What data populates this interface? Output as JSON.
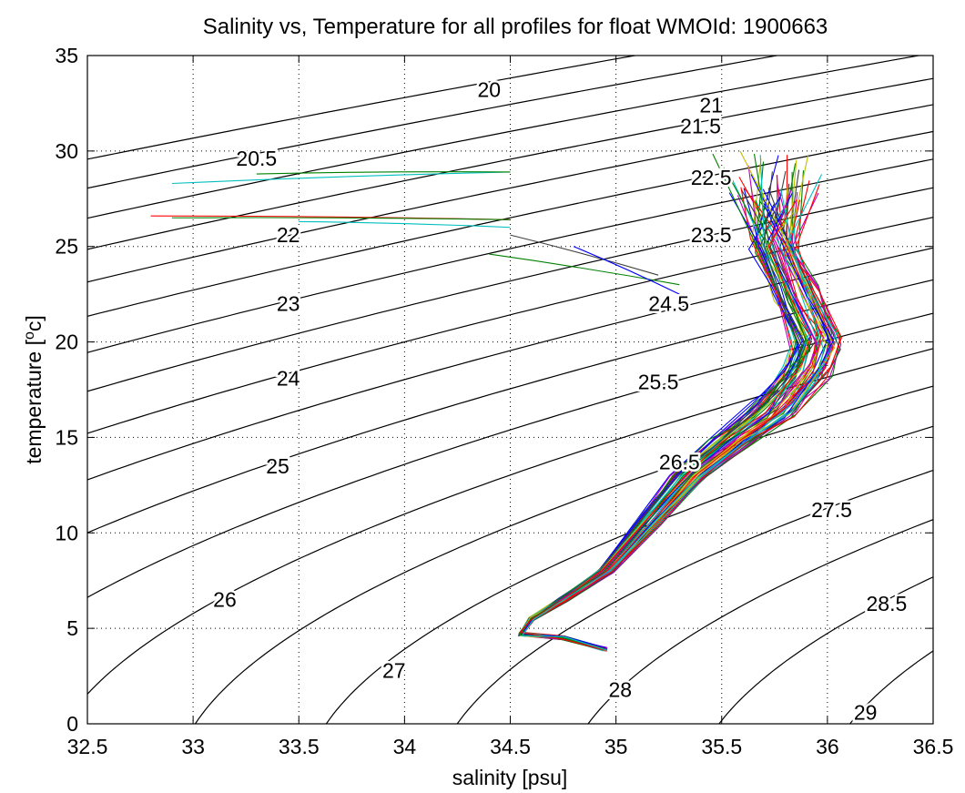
{
  "chart_data": {
    "type": "line",
    "title": "Salinity vs, Temperature for all profiles for float WMOId: 1900663",
    "xlabel": "salinity [psu]",
    "ylabel_main": "temperature [",
    "ylabel_sup": "o",
    "ylabel_end": "c]",
    "xlim": [
      32.5,
      36.5
    ],
    "ylim": [
      0,
      35
    ],
    "xticks": [
      32.5,
      33,
      33.5,
      34,
      34.5,
      35,
      35.5,
      36,
      36.5
    ],
    "xtick_labels": [
      "32.5",
      "33",
      "33.5",
      "34",
      "34.5",
      "35",
      "35.5",
      "36",
      "36.5"
    ],
    "yticks": [
      0,
      5,
      10,
      15,
      20,
      25,
      30,
      35
    ],
    "ytick_labels": [
      "0",
      "5",
      "10",
      "15",
      "20",
      "25",
      "30",
      "35"
    ],
    "grid": "dotted",
    "density_contours": {
      "levels": [
        20,
        20.5,
        21,
        21.5,
        22,
        22.5,
        23,
        23.5,
        24,
        24.5,
        25,
        25.5,
        26,
        26.5,
        27,
        27.5,
        28,
        28.5,
        29
      ],
      "labels": [
        {
          "text": "20",
          "x": 34.4,
          "y": 33.2
        },
        {
          "text": "21",
          "x": 35.45,
          "y": 32.4
        },
        {
          "text": "21.5",
          "x": 35.4,
          "y": 31.3
        },
        {
          "text": "20.5",
          "x": 33.3,
          "y": 29.6
        },
        {
          "text": "22.5",
          "x": 35.45,
          "y": 28.6
        },
        {
          "text": "22",
          "x": 33.45,
          "y": 25.6
        },
        {
          "text": "23.5",
          "x": 35.45,
          "y": 25.6
        },
        {
          "text": "23",
          "x": 33.45,
          "y": 22.0
        },
        {
          "text": "24.5",
          "x": 35.25,
          "y": 22.0
        },
        {
          "text": "24",
          "x": 33.45,
          "y": 18.1
        },
        {
          "text": "25.5",
          "x": 35.2,
          "y": 17.9
        },
        {
          "text": "25",
          "x": 33.4,
          "y": 13.5
        },
        {
          "text": "26.5",
          "x": 35.3,
          "y": 13.7
        },
        {
          "text": "27.5",
          "x": 36.02,
          "y": 11.2
        },
        {
          "text": "26",
          "x": 33.15,
          "y": 6.5
        },
        {
          "text": "28.5",
          "x": 36.28,
          "y": 6.3
        },
        {
          "text": "27",
          "x": 33.95,
          "y": 2.8
        },
        {
          "text": "28",
          "x": 35.02,
          "y": 1.8
        },
        {
          "text": "29",
          "x": 36.18,
          "y": 0.6
        }
      ]
    },
    "profiles": {
      "count": 60,
      "colors": [
        "#0000ff",
        "#008000",
        "#ff0000",
        "#00bfbf",
        "#bf00bf",
        "#bfbf00",
        "#404040"
      ],
      "mean_path": [
        [
          35.7,
          27.8
        ],
        [
          35.75,
          25.0
        ],
        [
          35.85,
          22.5
        ],
        [
          35.95,
          20.0
        ],
        [
          35.9,
          18.5
        ],
        [
          35.75,
          16.5
        ],
        [
          35.55,
          14.8
        ],
        [
          35.35,
          13.0
        ],
        [
          35.15,
          10.5
        ],
        [
          34.95,
          8.0
        ],
        [
          34.75,
          6.5
        ],
        [
          34.6,
          5.5
        ],
        [
          34.55,
          4.7
        ],
        [
          34.75,
          4.5
        ],
        [
          34.95,
          3.9
        ]
      ],
      "mixed_layer_tails": [
        {
          "from": [
            34.5,
            28.9
          ],
          "to": [
            32.9,
            28.3
          ],
          "color": "#00bfbf"
        },
        {
          "from": [
            34.5,
            28.9
          ],
          "to": [
            33.3,
            28.8
          ],
          "color": "#008000"
        },
        {
          "from": [
            34.5,
            26.4
          ],
          "to": [
            32.8,
            26.6
          ],
          "color": "#ff0000"
        },
        {
          "from": [
            34.5,
            26.4
          ],
          "to": [
            32.9,
            26.5
          ],
          "color": "#008000"
        },
        {
          "from": [
            34.5,
            26.0
          ],
          "to": [
            33.5,
            26.3
          ],
          "color": "#00bfbf"
        },
        {
          "from": [
            35.2,
            23.5
          ],
          "to": [
            34.5,
            25.6
          ],
          "color": "#404040"
        },
        {
          "from": [
            35.3,
            23.0
          ],
          "to": [
            34.4,
            24.6
          ],
          "color": "#008000"
        },
        {
          "from": [
            35.3,
            22.5
          ],
          "to": [
            34.8,
            25.0
          ],
          "color": "#0000ff"
        }
      ]
    }
  }
}
